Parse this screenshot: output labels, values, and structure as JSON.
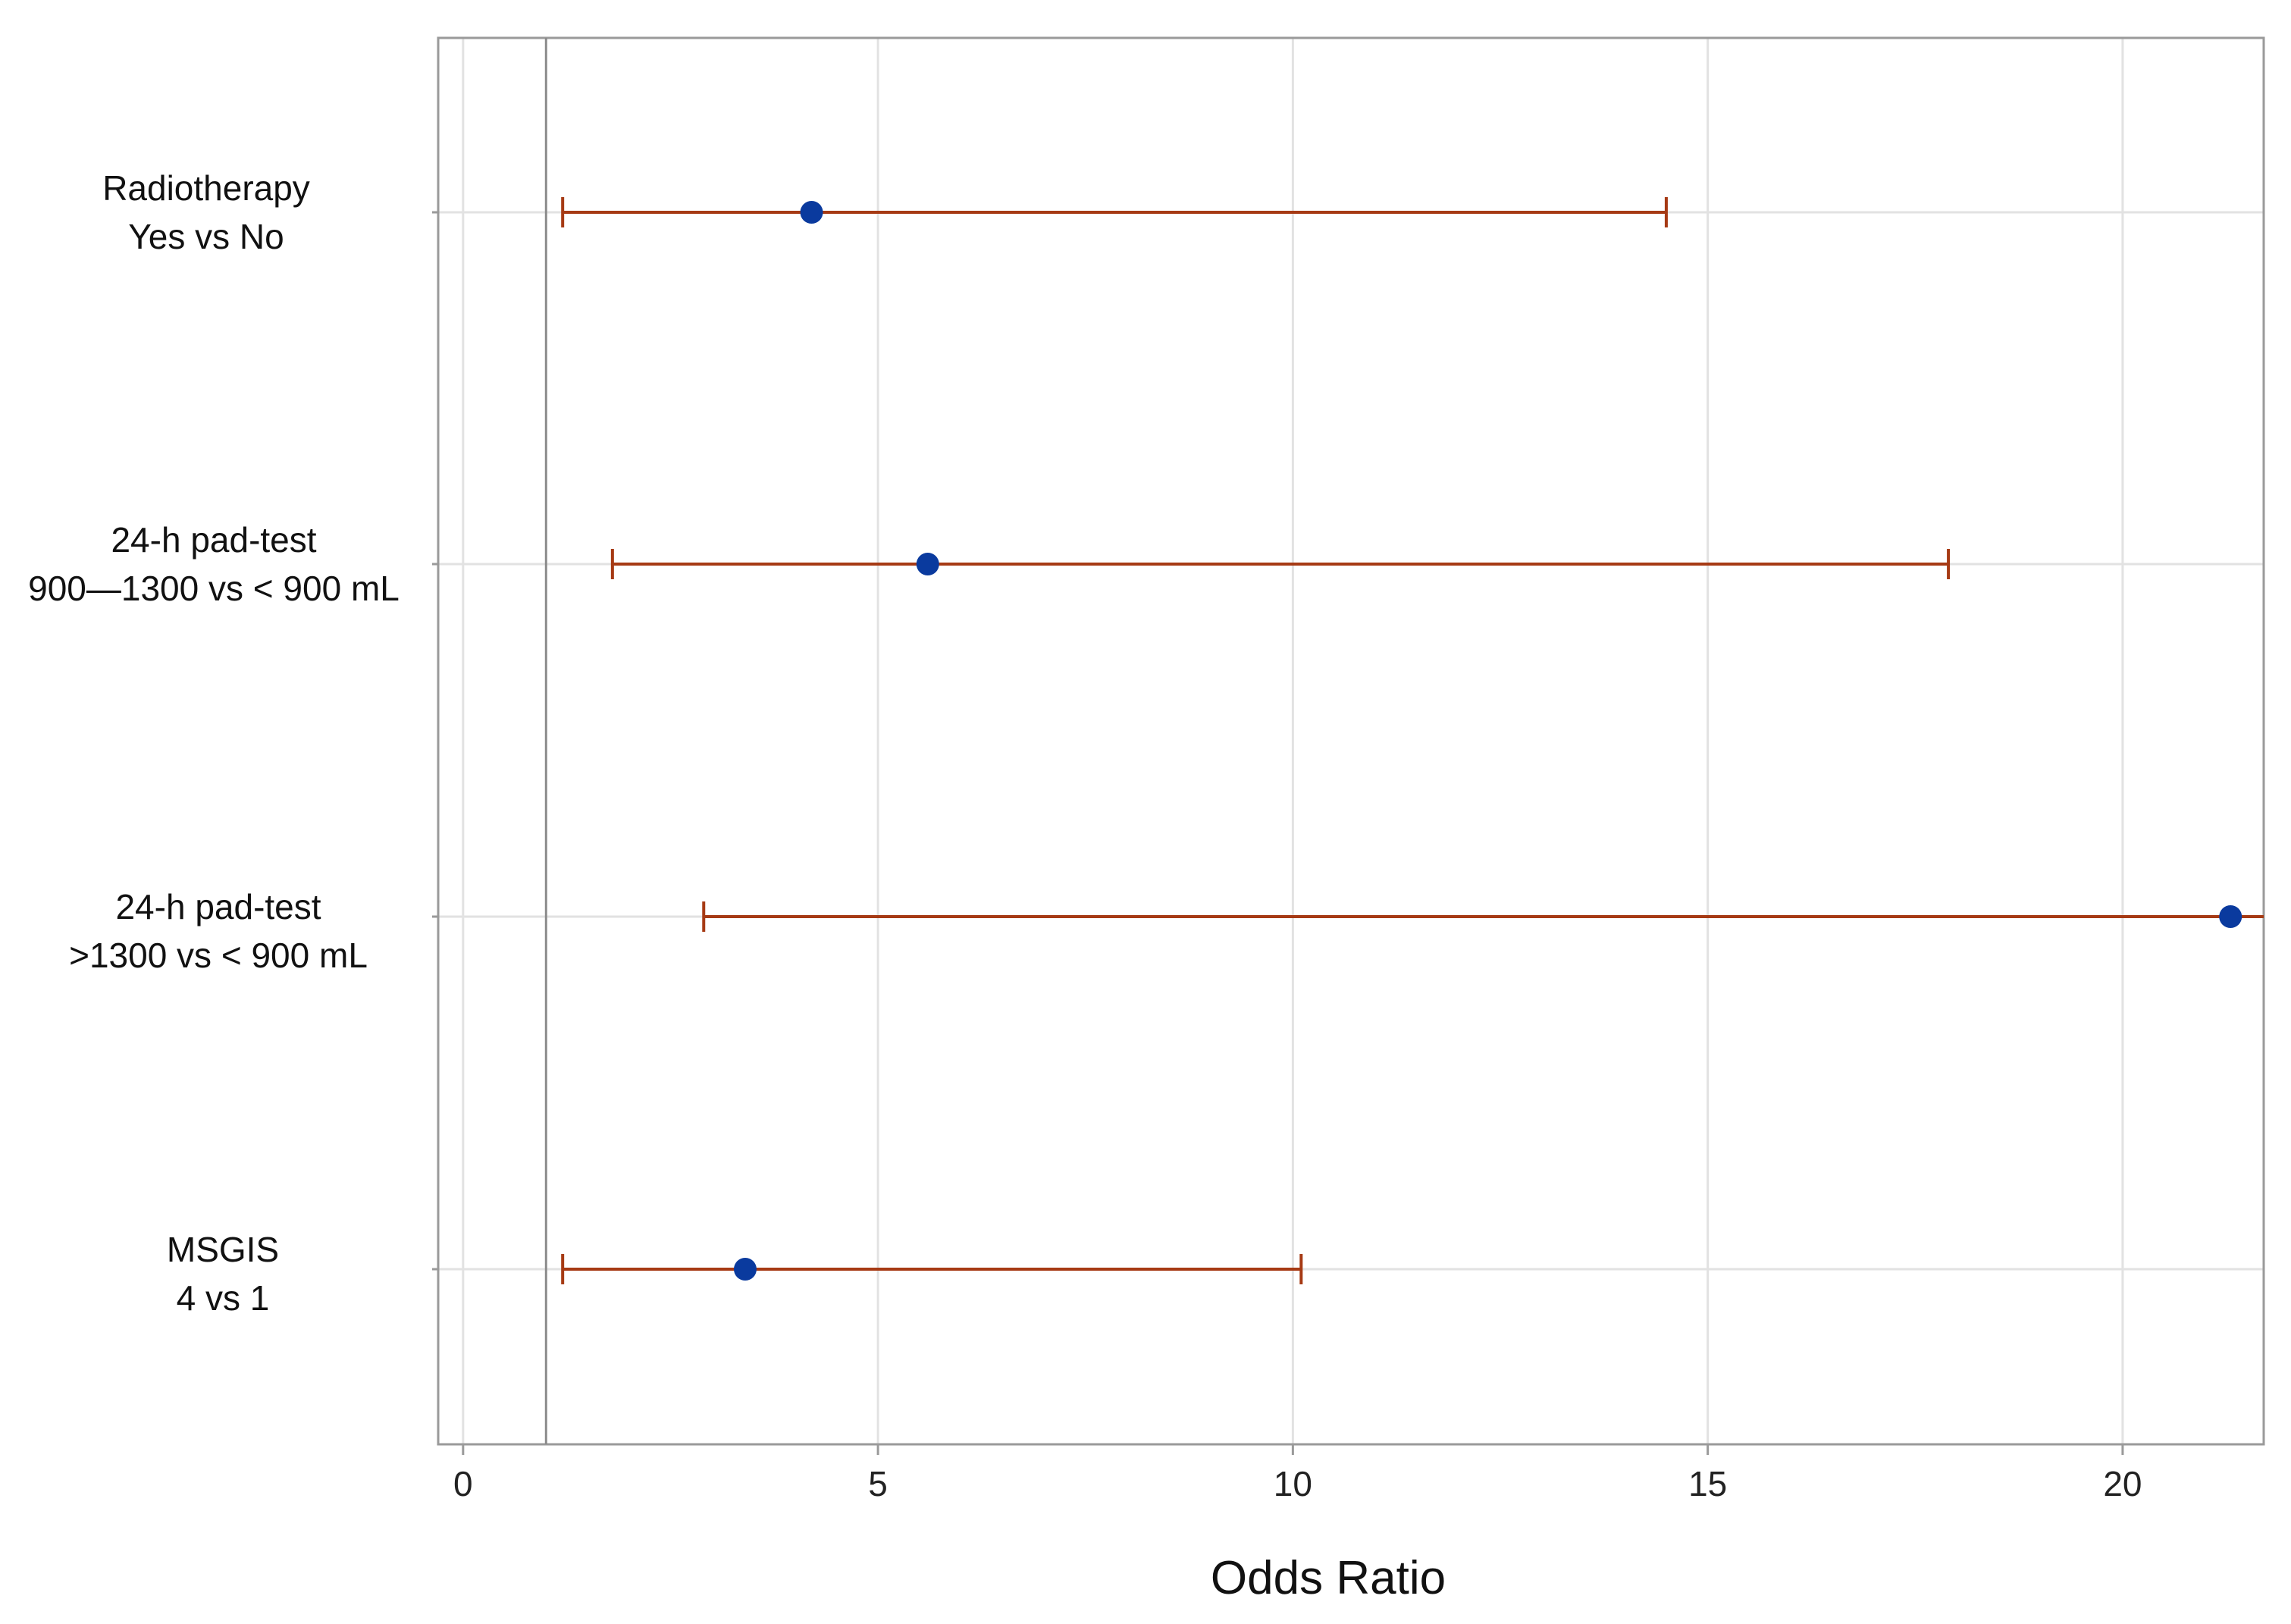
{
  "chart_data": {
    "type": "forest",
    "xlabel": "Odds Ratio",
    "xlim": [
      -0.3,
      21.7
    ],
    "xticks": [
      0,
      5,
      10,
      15,
      20
    ],
    "reference_line": 1,
    "grid": true,
    "rows": [
      {
        "label_lines": [
          "Radiotherapy",
          "Yes vs No"
        ],
        "estimate": 4.2,
        "lower": 1.2,
        "upper": 14.5
      },
      {
        "label_lines": [
          "24-h pad-test",
          "900—1300 vs < 900 mL"
        ],
        "estimate": 5.6,
        "lower": 1.8,
        "upper": 17.9
      },
      {
        "label_lines": [
          "24-h pad-test",
          ">1300 vs < 900 mL"
        ],
        "estimate": 21.3,
        "lower": 2.9,
        "upper": 21.7
      },
      {
        "label_lines": [
          "MSGIS",
          "4 vs 1"
        ],
        "estimate": 3.4,
        "lower": 1.2,
        "upper": 10.1
      }
    ],
    "colors": {
      "point": "#0a3a9e",
      "interval": "#a63a14",
      "grid": "#e2e2e2",
      "frame": "#9a9a9a",
      "reference": "#8c8c8c"
    }
  }
}
